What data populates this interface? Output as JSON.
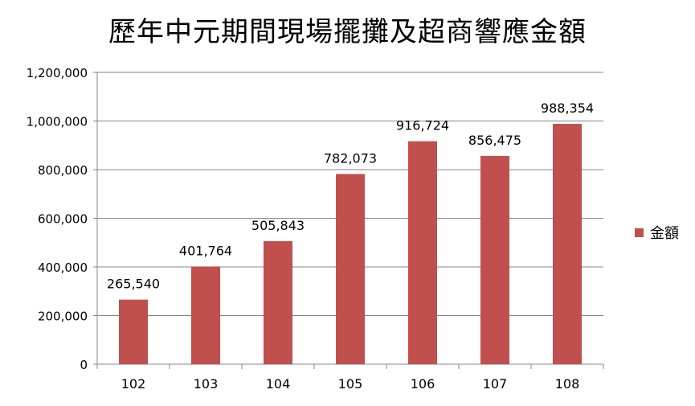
{
  "chart_data": {
    "type": "bar",
    "title": "歷年中元期間現場擺攤及超商響應金額",
    "categories": [
      "102",
      "103",
      "104",
      "105",
      "106",
      "107",
      "108"
    ],
    "series": [
      {
        "name": "金額",
        "values": [
          265540,
          401764,
          505843,
          782073,
          916724,
          856475,
          988354
        ]
      }
    ],
    "data_labels": [
      "265,540",
      "401,764",
      "505,843",
      "782,073",
      "916,724",
      "856,475",
      "988,354"
    ],
    "y_ticks": [
      "0",
      "200,000",
      "400,000",
      "600,000",
      "800,000",
      "1,000,000",
      "1,200,000"
    ],
    "ylim": [
      0,
      1200000
    ],
    "grid": true,
    "legend_position": "right",
    "bar_color": "#C0504D"
  }
}
